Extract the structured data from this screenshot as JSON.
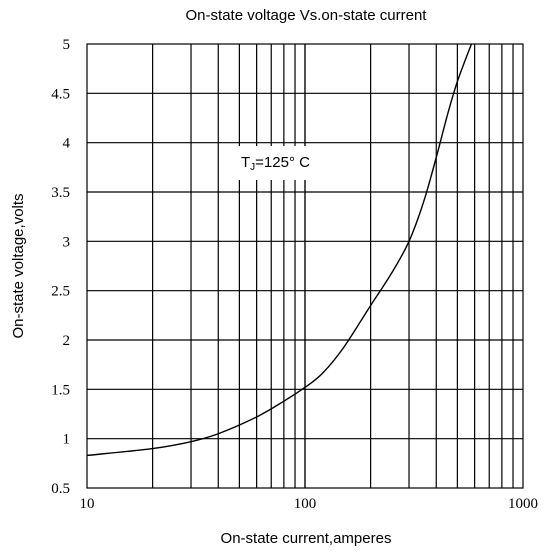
{
  "chart_data": {
    "type": "line",
    "title": "On-state voltage  Vs.on-state current",
    "xlabel": "On-state current,amperes",
    "ylabel": "On-state voltage,volts",
    "x_scale": "log",
    "xlim": [
      10,
      1000
    ],
    "ylim": [
      0.5,
      5
    ],
    "grid": true,
    "x_tick_labels": [
      "10",
      "100",
      "1000"
    ],
    "y_tick_labels": [
      "0.5",
      "1",
      "1.5",
      "2",
      "2.5",
      "3",
      "3.5",
      "4",
      "4.5",
      "5"
    ],
    "annotation": {
      "main": "T",
      "sub": "J",
      "rest": "=125°  C"
    },
    "series": [
      {
        "color": "#000000",
        "x": [
          10,
          20,
          30,
          40,
          60,
          80,
          100,
          120,
          150,
          200,
          250,
          300,
          350,
          400,
          450,
          500,
          580
        ],
        "y": [
          0.83,
          0.9,
          0.97,
          1.05,
          1.22,
          1.38,
          1.52,
          1.66,
          1.92,
          2.35,
          2.68,
          3.0,
          3.4,
          3.85,
          4.28,
          4.62,
          5.0
        ]
      }
    ]
  }
}
